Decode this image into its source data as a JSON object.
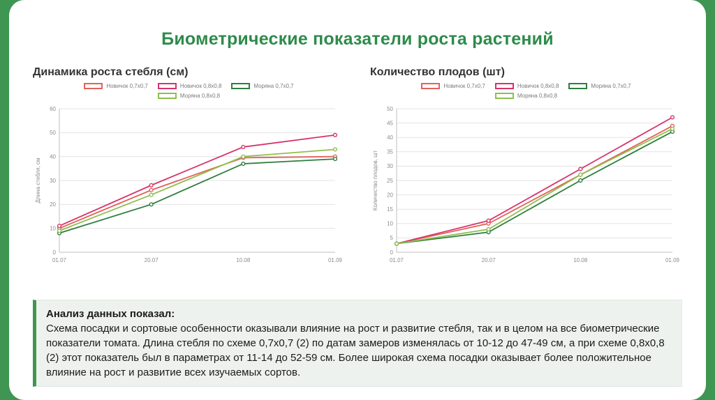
{
  "title": "Биометрические показатели роста растений",
  "theme": {
    "frame_green": "#3f9552",
    "title_green": "#2e8b4b",
    "heading_color": "#333333",
    "box_bg": "#eef2ee",
    "box_border": "#3f9552",
    "grid_color": "#e3e3e3",
    "axis_line_color": "#bfbfbf",
    "axis_text_color": "#8b8b8b"
  },
  "analysis": {
    "heading": "Анализ данных показал:",
    "body": "Схема посадки и сортовые особенности оказывали влияние на рост и развитие стебля, так и в целом на все биометрические показатели томата. Длина стебля по схеме 0,7х0,7 (2) по датам замеров изменялась от 10-12 до 47-49 см, а при схеме 0,8х0,8 (2) этот показатель был в параметрах от 11-14 до 52-59 см. Более широкая схема посадки оказывает более положительное влияние на рост и развитие всех изучаемых сортов."
  },
  "chart_data": [
    {
      "type": "line",
      "heading": "Динамика роста стебля (см)",
      "ylabel": "Длина стебля, см",
      "x": [
        "01.07",
        "20.07",
        "10.08",
        "01.09"
      ],
      "ylim": [
        0,
        60
      ],
      "ytick_step": 10,
      "grid": true,
      "legend_position": "top",
      "series": [
        {
          "name": "Новичок 0,7х0,7",
          "color": "#e2625a",
          "values": [
            10,
            26,
            39.5,
            40
          ]
        },
        {
          "name": "Новичок 0,8х0,8",
          "color": "#d6336c",
          "values": [
            11,
            28,
            44,
            49
          ]
        },
        {
          "name": "Моряна 0,7х0,7",
          "color": "#2e7d3e",
          "values": [
            8,
            20,
            37,
            39
          ]
        },
        {
          "name": "Моряна 0,8х0,8",
          "color": "#8fbf4d",
          "values": [
            9,
            24,
            40,
            43
          ]
        }
      ]
    },
    {
      "type": "line",
      "heading": "Количество плодов (шт)",
      "ylabel": "Количество плодов, шт",
      "x": [
        "01.07",
        "20.07",
        "10.08",
        "01.09"
      ],
      "ylim": [
        0,
        50
      ],
      "ytick_step": 5,
      "grid": true,
      "legend_position": "top",
      "series": [
        {
          "name": "Новичок 0,7х0,7",
          "color": "#e2625a",
          "values": [
            3,
            10,
            27,
            44
          ]
        },
        {
          "name": "Новичок 0,8х0,8",
          "color": "#d6336c",
          "values": [
            3,
            11,
            29,
            47
          ]
        },
        {
          "name": "Моряна 0,7х0,7",
          "color": "#2e7d3e",
          "values": [
            3,
            7,
            25,
            42
          ]
        },
        {
          "name": "Моряна 0,8х0,8",
          "color": "#8fbf4d",
          "values": [
            3,
            8,
            27,
            43
          ]
        }
      ]
    }
  ]
}
